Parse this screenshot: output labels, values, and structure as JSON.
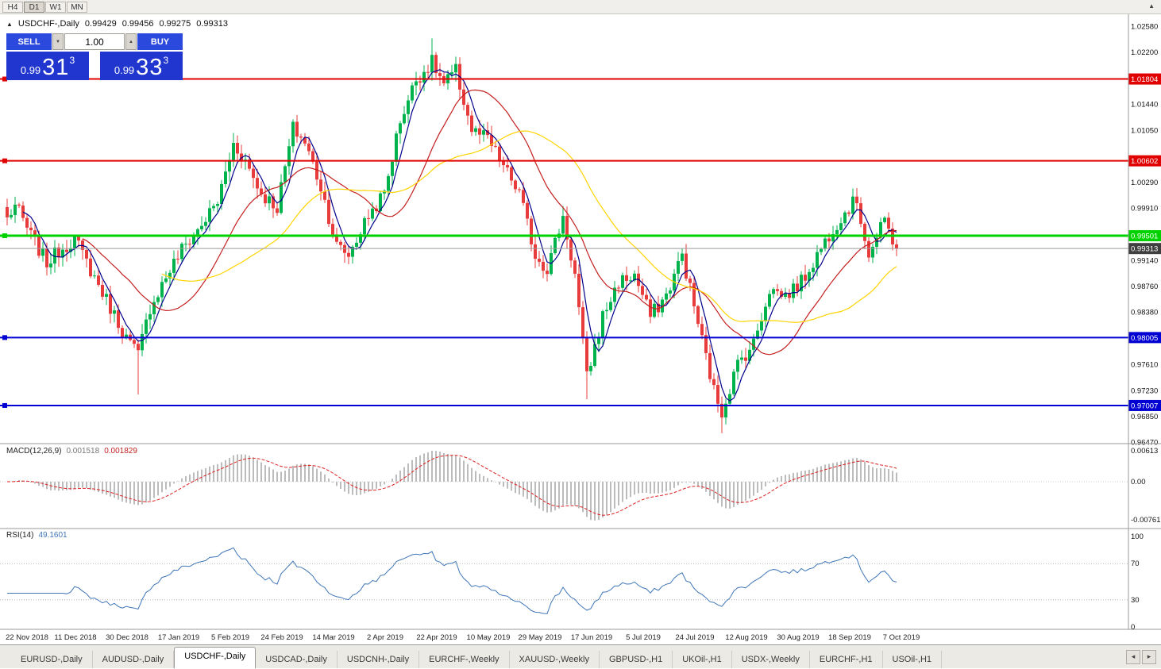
{
  "toolbar": {
    "timeframes": [
      {
        "label": "H4",
        "active": false
      },
      {
        "label": "D1",
        "active": true
      },
      {
        "label": "W1",
        "active": false
      },
      {
        "label": "MN",
        "active": false
      }
    ]
  },
  "icons": {
    "symbol_direction": "▲",
    "spinner_up": "▲",
    "spinner_down": "▼",
    "corner_arrow": "▲",
    "tab_scroll_left": "◂",
    "tab_scroll_right": "▸"
  },
  "symbol_info": {
    "title": "USDCHF-,Daily",
    "open": "0.99429",
    "high": "0.99456",
    "low": "0.99275",
    "close": "0.99313"
  },
  "trade_panel": {
    "sell_label": "SELL",
    "buy_label": "BUY",
    "lot_value": "1.00",
    "sell_price": {
      "small": "0.99",
      "big": "31",
      "sup": "3"
    },
    "buy_price": {
      "small": "0.99",
      "big": "33",
      "sup": "3"
    }
  },
  "chart_data": {
    "type": "candlestick",
    "symbol": "USDCHF",
    "period": "Daily",
    "x_labels": [
      "22 Nov 2018",
      "11 Dec 2018",
      "30 Dec 2018",
      "17 Jan 2019",
      "5 Feb 2019",
      "24 Feb 2019",
      "14 Mar 2019",
      "2 Apr 2019",
      "22 Apr 2019",
      "10 May 2019",
      "29 May 2019",
      "17 Jun 2019",
      "5 Jul 2019",
      "24 Jul 2019",
      "12 Aug 2019",
      "30 Aug 2019",
      "18 Sep 2019",
      "7 Oct 2019"
    ],
    "y_axis": {
      "min": 0.9647,
      "max": 1.0258,
      "ticks": [
        "1.02580",
        "1.02200",
        "1.01440",
        "1.01050",
        "1.00290",
        "0.99910",
        "0.99140",
        "0.98760",
        "0.98380",
        "0.97610",
        "0.97230",
        "0.96850",
        "0.96470"
      ]
    },
    "levels": [
      {
        "value": 1.01804,
        "label": "1.01804",
        "color": "#e00000",
        "thickness": 2
      },
      {
        "value": 1.00602,
        "label": "1.00602",
        "color": "#e00000",
        "thickness": 2
      },
      {
        "value": 0.99501,
        "label": "0.99501",
        "color": "#00d200",
        "thickness": 3
      },
      {
        "value": 0.98005,
        "label": "0.98005",
        "color": "#0000d2",
        "thickness": 2
      },
      {
        "value": 0.97007,
        "label": "0.97007",
        "color": "#0000d2",
        "thickness": 2
      }
    ],
    "current_price": {
      "value": 0.99313,
      "label": "0.99313",
      "line_color": "#9a9a9a",
      "box_color": "#3f3f3f"
    },
    "candle_up_color": "#00b34d",
    "candle_down_color": "#e83b3b",
    "bars_total": 225,
    "close_keypoints": [
      [
        0,
        0.9975
      ],
      [
        2,
        0.9995
      ],
      [
        6,
        0.995
      ],
      [
        10,
        0.991
      ],
      [
        13,
        0.9928
      ],
      [
        17,
        0.9945
      ],
      [
        21,
        0.99
      ],
      [
        26,
        0.9845
      ],
      [
        30,
        0.98
      ],
      [
        33,
        0.9775
      ],
      [
        36,
        0.9845
      ],
      [
        40,
        0.989
      ],
      [
        44,
        0.993
      ],
      [
        48,
        0.9958
      ],
      [
        53,
        1.0
      ],
      [
        57,
        1.0085
      ],
      [
        60,
        1.006
      ],
      [
        64,
        1.0012
      ],
      [
        68,
        0.9992
      ],
      [
        72,
        1.0108
      ],
      [
        75,
        1.0088
      ],
      [
        79,
        1.0022
      ],
      [
        83,
        0.9935
      ],
      [
        86,
        0.9922
      ],
      [
        91,
        0.998
      ],
      [
        95,
        1.0012
      ],
      [
        99,
        1.012
      ],
      [
        103,
        1.018
      ],
      [
        107,
        1.0205
      ],
      [
        110,
        1.0172
      ],
      [
        113,
        1.0192
      ],
      [
        117,
        1.0105
      ],
      [
        121,
        1.0092
      ],
      [
        125,
        1.0052
      ],
      [
        129,
        1.0012
      ],
      [
        133,
        0.9922
      ],
      [
        136,
        0.9902
      ],
      [
        140,
        0.9978
      ],
      [
        143,
        0.9892
      ],
      [
        146,
        0.9742
      ],
      [
        150,
        0.9832
      ],
      [
        154,
        0.9882
      ],
      [
        158,
        0.9892
      ],
      [
        162,
        0.9832
      ],
      [
        166,
        0.9862
      ],
      [
        170,
        0.9922
      ],
      [
        174,
        0.9822
      ],
      [
        178,
        0.9722
      ],
      [
        180,
        0.9692
      ],
      [
        184,
        0.9762
      ],
      [
        188,
        0.9792
      ],
      [
        192,
        0.9872
      ],
      [
        196,
        0.9862
      ],
      [
        200,
        0.9882
      ],
      [
        204,
        0.9922
      ],
      [
        208,
        0.9962
      ],
      [
        212,
        0.9992
      ],
      [
        214,
        1.0002
      ],
      [
        217,
        0.9922
      ],
      [
        221,
        0.9972
      ],
      [
        224,
        0.99313
      ]
    ],
    "wick_overrides": {
      "33": {
        "low": 0.9717
      },
      "107": {
        "high": 1.024
      },
      "146": {
        "low": 0.971
      },
      "180": {
        "low": 0.966
      }
    },
    "moving_averages": [
      {
        "period": 5,
        "color": "#00008b"
      },
      {
        "period": 20,
        "color": "#c41e1e"
      },
      {
        "period": 40,
        "color": "#ffd400"
      }
    ],
    "indicators": {
      "macd": {
        "label": "MACD(12,26,9)",
        "value1": "0.001518",
        "value2": "0.001829",
        "axis_ticks": [
          "0.00613",
          "0.00",
          "-0.00761"
        ],
        "histogram_color": "#bcbcbc",
        "signal_color": "#dd2222"
      },
      "rsi": {
        "label": "RSI(14)",
        "value": "49.1601",
        "axis_ticks": [
          "100",
          "70",
          "30",
          "0"
        ],
        "levels": [
          70,
          30
        ],
        "line_color": "#3f76b8"
      }
    }
  },
  "tabs": {
    "items": [
      {
        "label": "EURUSD-,Daily",
        "active": false
      },
      {
        "label": "AUDUSD-,Daily",
        "active": false
      },
      {
        "label": "USDCHF-,Daily",
        "active": true
      },
      {
        "label": "USDCAD-,Daily",
        "active": false
      },
      {
        "label": "USDCNH-,Daily",
        "active": false
      },
      {
        "label": "EURCHF-,Weekly",
        "active": false
      },
      {
        "label": "XAUUSD-,Weekly",
        "active": false
      },
      {
        "label": "GBPUSD-,H1",
        "active": false
      },
      {
        "label": "UKOil-,H1",
        "active": false
      },
      {
        "label": "USDX-,Weekly",
        "active": false
      },
      {
        "label": "EURCHF-,H1",
        "active": false
      },
      {
        "label": "USOil-,H1",
        "active": false
      }
    ]
  }
}
